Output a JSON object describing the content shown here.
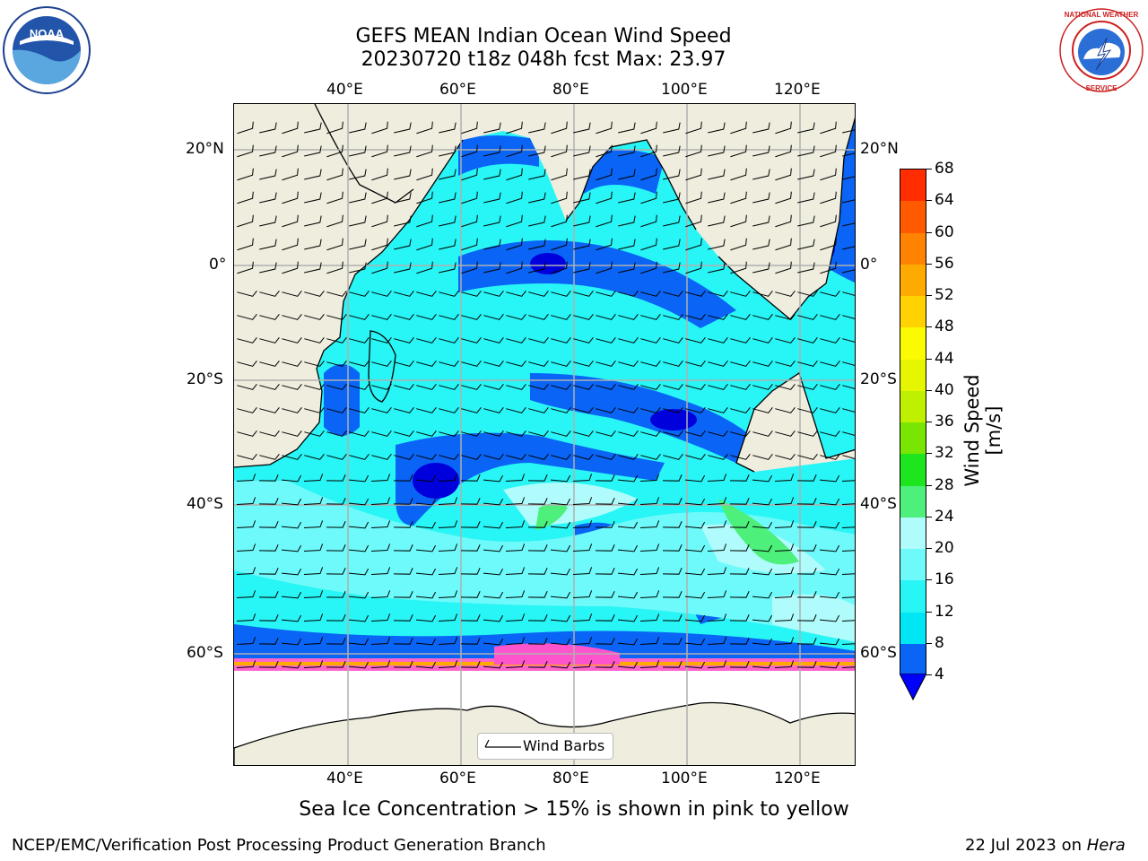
{
  "title_line1": "GEFS MEAN Indian Ocean Wind Speed",
  "title_line2": "20230720 t18z 048h fcst   Max: 23.97",
  "lon_labels": [
    "40°E",
    "60°E",
    "80°E",
    "100°E",
    "120°E"
  ],
  "lat_labels": [
    "20°N",
    "0°",
    "20°S",
    "40°S",
    "60°S"
  ],
  "colorbar": {
    "label": "Wind Speed [m/s]",
    "ticks": [
      "4",
      "8",
      "12",
      "16",
      "20",
      "24",
      "28",
      "32",
      "36",
      "40",
      "44",
      "48",
      "52",
      "56",
      "60",
      "64",
      "68"
    ],
    "colors": [
      "#0a64f5",
      "#00e6f5",
      "#28f5f5",
      "#6efafa",
      "#b0fcfc",
      "#4cf07a",
      "#1ee61e",
      "#78e600",
      "#bef000",
      "#e6f500",
      "#fafa00",
      "#ffd200",
      "#ffaa00",
      "#ff8200",
      "#ff5a00",
      "#ff2d00",
      "#ff0000"
    ],
    "under_color": "#0000ff"
  },
  "legend_label": "Wind Barbs",
  "caption": "Sea Ice Concentration > 15% is shown in pink to yellow",
  "footer_left": "NCEP/EMC/Verification Post Processing Product Generation Branch",
  "footer_date": "22 Jul 2023 on ",
  "footer_host": "Hera",
  "logos": {
    "left": "NOAA",
    "right": "NATIONAL WEATHER SERVICE"
  }
}
